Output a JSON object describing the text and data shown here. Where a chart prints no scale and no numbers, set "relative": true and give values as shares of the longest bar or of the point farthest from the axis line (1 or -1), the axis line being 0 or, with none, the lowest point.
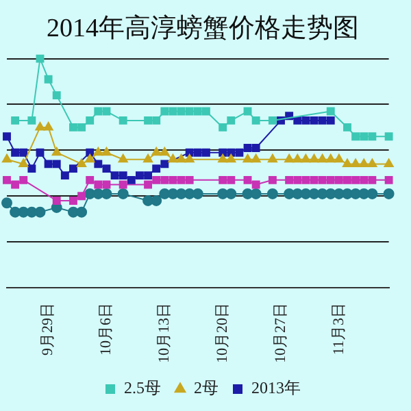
{
  "chart_data": {
    "type": "line",
    "title": "2014年高淳螃蟹价格走势图",
    "relative": true,
    "grid": "y",
    "legend": "bottom",
    "line_style": "solid",
    "categories": [
      null,
      null,
      null,
      null,
      null,
      "9月29日",
      null,
      null,
      null,
      null,
      null,
      null,
      "10月6日",
      null,
      null,
      null,
      null,
      null,
      null,
      "10月13日",
      null,
      null,
      null,
      null,
      null,
      null,
      "10月20日",
      null,
      null,
      null,
      null,
      null,
      null,
      "10月27日",
      null,
      null,
      null,
      null,
      null,
      null,
      "11月3日",
      null,
      null,
      null,
      null,
      null,
      null
    ],
    "series": [
      {
        "name": "2.5母",
        "color": "#3cc8b4",
        "marker": "square",
        "values": [
          null,
          0.73,
          null,
          0.73,
          1.0,
          0.91,
          0.84,
          null,
          0.7,
          0.7,
          0.73,
          0.77,
          0.77,
          null,
          0.73,
          null,
          null,
          0.73,
          0.73,
          0.77,
          0.77,
          0.77,
          0.77,
          0.77,
          0.77,
          null,
          0.7,
          0.73,
          null,
          0.77,
          0.73,
          null,
          0.73,
          null,
          null,
          null,
          null,
          null,
          null,
          0.77,
          null,
          0.7,
          0.66,
          0.66,
          0.66,
          null,
          0.66
        ]
      },
      {
        "name": "2母",
        "color": "#c8a820",
        "marker": "triangle",
        "values": [
          0.56,
          null,
          0.54,
          null,
          0.7,
          0.7,
          0.59,
          null,
          null,
          0.54,
          0.56,
          0.59,
          0.59,
          null,
          0.56,
          null,
          null,
          0.56,
          0.59,
          0.59,
          0.56,
          0.56,
          0.56,
          null,
          null,
          null,
          0.56,
          0.56,
          null,
          0.56,
          0.56,
          null,
          0.56,
          null,
          0.56,
          0.56,
          0.56,
          0.56,
          0.56,
          0.56,
          0.56,
          0.54,
          0.54,
          0.54,
          0.54,
          null,
          0.54
        ]
      },
      {
        "name": "2013年",
        "color": "#1c1ca8",
        "marker": "square",
        "values": [
          0.66,
          0.59,
          0.59,
          0.52,
          0.59,
          0.54,
          0.54,
          0.49,
          0.52,
          null,
          0.59,
          0.54,
          0.52,
          0.49,
          0.49,
          0.47,
          0.49,
          0.49,
          0.52,
          0.54,
          null,
          null,
          0.59,
          0.59,
          0.59,
          null,
          0.59,
          0.59,
          0.59,
          0.61,
          0.61,
          null,
          null,
          0.73,
          0.75,
          0.73,
          0.73,
          0.73,
          0.73,
          0.73,
          null,
          null,
          null,
          null,
          null,
          null,
          null
        ]
      },
      {
        "color": "#c832b4",
        "marker": "square",
        "values": [
          0.47,
          0.45,
          0.47,
          null,
          null,
          null,
          0.38,
          null,
          0.38,
          0.4,
          0.47,
          0.45,
          0.45,
          null,
          0.45,
          null,
          null,
          0.45,
          0.47,
          0.47,
          0.47,
          0.47,
          0.47,
          null,
          null,
          null,
          0.47,
          0.47,
          null,
          0.47,
          0.45,
          null,
          0.47,
          null,
          0.47,
          0.47,
          0.47,
          0.47,
          0.47,
          0.47,
          0.47,
          0.47,
          0.47,
          0.47,
          0.47,
          null,
          0.47
        ]
      },
      {
        "color": "#207888",
        "marker": "circle",
        "values": [
          0.37,
          0.33,
          0.33,
          0.33,
          0.33,
          null,
          0.35,
          null,
          0.33,
          0.33,
          0.41,
          0.41,
          0.41,
          null,
          0.41,
          null,
          null,
          0.38,
          0.38,
          0.41,
          0.41,
          0.41,
          0.41,
          0.41,
          null,
          null,
          0.41,
          0.41,
          null,
          0.41,
          0.41,
          null,
          0.41,
          null,
          0.41,
          0.41,
          0.41,
          0.41,
          0.41,
          0.41,
          0.41,
          0.41,
          0.41,
          0.41,
          0.41,
          null,
          0.41
        ]
      }
    ]
  }
}
